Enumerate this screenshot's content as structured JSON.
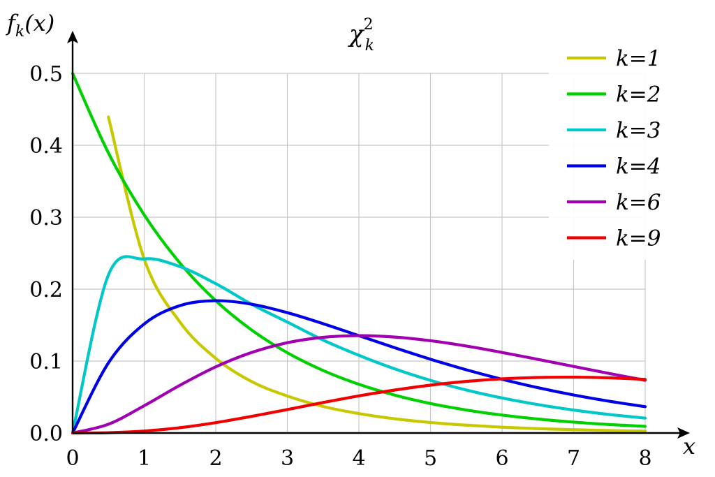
{
  "chart_data": {
    "type": "line",
    "title": "χ",
    "title_sup": "2",
    "title_sub": "k",
    "xlabel": "x",
    "ylabel": "f",
    "ylabel_sub": "k",
    "ylabel_arg": "(x)",
    "xlim": [
      0,
      8
    ],
    "ylim": [
      0,
      0.5
    ],
    "x_ticks": [
      "0",
      "1",
      "2",
      "3",
      "4",
      "5",
      "6",
      "7",
      "8"
    ],
    "y_ticks": [
      "0.0",
      "0.1",
      "0.2",
      "0.3",
      "0.4",
      "0.5"
    ],
    "grid": true,
    "legend_position": "top-right",
    "x": [
      0,
      0.5,
      1,
      1.5,
      2,
      2.5,
      3,
      3.5,
      4,
      4.5,
      5,
      5.5,
      6,
      6.5,
      7,
      7.5,
      8
    ],
    "series": [
      {
        "name": "k=1",
        "k": "1",
        "color": "#c8c800",
        "values": [
          null,
          0.4394,
          0.242,
          0.1542,
          0.1038,
          0.0716,
          0.0514,
          0.0369,
          0.027,
          0.0198,
          0.0146,
          0.0109,
          0.0081,
          0.0061,
          0.0046,
          0.0034,
          0.0026
        ]
      },
      {
        "name": "k=2",
        "k": "2",
        "color": "#00d000",
        "values": [
          0.5,
          0.3894,
          0.3033,
          0.2362,
          0.1839,
          0.1433,
          0.1116,
          0.0869,
          0.0677,
          0.0527,
          0.041,
          0.032,
          0.0249,
          0.0194,
          0.0151,
          0.0118,
          0.0092
        ]
      },
      {
        "name": "k=3",
        "k": "3",
        "color": "#00c8c8",
        "values": [
          0,
          0.2197,
          0.242,
          0.2313,
          0.2076,
          0.179,
          0.1542,
          0.1292,
          0.108,
          0.0892,
          0.0732,
          0.0598,
          0.0487,
          0.0395,
          0.0319,
          0.0257,
          0.0207
        ]
      },
      {
        "name": "k=4",
        "k": "4",
        "color": "#0000e6",
        "values": [
          0,
          0.0974,
          0.1516,
          0.1771,
          0.1839,
          0.1791,
          0.1673,
          0.152,
          0.1353,
          0.1186,
          0.1026,
          0.0879,
          0.0747,
          0.063,
          0.0528,
          0.0441,
          0.0366
        ]
      },
      {
        "name": "k=6",
        "k": "6",
        "color": "#a000b0",
        "values": [
          0,
          0.0122,
          0.0379,
          0.0664,
          0.092,
          0.1119,
          0.1255,
          0.133,
          0.1353,
          0.1334,
          0.1283,
          0.1209,
          0.112,
          0.1024,
          0.0925,
          0.0827,
          0.0733
        ]
      },
      {
        "name": "k=9",
        "k": "9",
        "color": "#f00000",
        "values": [
          0,
          0.0004,
          0.0027,
          0.0074,
          0.0144,
          0.0231,
          0.0326,
          0.0424,
          0.0516,
          0.0597,
          0.0665,
          0.0717,
          0.0753,
          0.0772,
          0.0776,
          0.0767,
          0.0745
        ]
      }
    ]
  }
}
